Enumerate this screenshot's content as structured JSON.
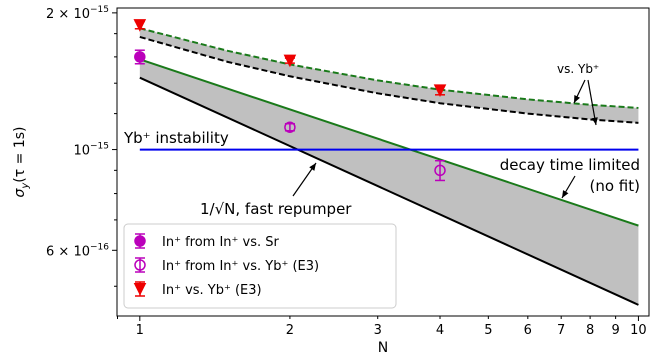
{
  "chart_data": {
    "type": "scatter",
    "xlabel": "N",
    "ylabel": "σ",
    "ylabel_sub": "y",
    "ylabel_arg": "(τ = 1s)",
    "xscale": "log",
    "yscale": "log",
    "xlim": [
      0.9,
      10.5
    ],
    "ylim": [
      4.3e-16,
      2.05e-15
    ],
    "xticks": [
      1,
      2,
      3,
      4,
      5,
      6,
      7,
      8,
      9,
      10
    ],
    "xtick_labels": [
      "1",
      "2",
      "3",
      "4",
      "5",
      "6",
      "7",
      "8",
      "9",
      "10"
    ],
    "yticks": [
      {
        "value": 2e-15,
        "mant": "2 × 10",
        "exp": "−15"
      },
      {
        "value": 1e-15,
        "mant": "10",
        "exp": "−15"
      },
      {
        "value": 6e-16,
        "mant": "6 × 10",
        "exp": "−16"
      }
    ],
    "bands": [
      {
        "name": "decay time limited",
        "upper": {
          "x": [
            1,
            10
          ],
          "y": [
            1.58e-15,
            6.8e-16
          ]
        },
        "lower": {
          "x": [
            1,
            10
          ],
          "y": [
            1.44e-15,
            4.55e-16
          ]
        }
      },
      {
        "name": "vs. Yb+",
        "upper": {
          "x": [
            1,
            1.5,
            2,
            3,
            4,
            6,
            8,
            10
          ],
          "y": [
            1.85e-15,
            1.65e-15,
            1.54e-15,
            1.42e-15,
            1.355e-15,
            1.29e-15,
            1.255e-15,
            1.235e-15
          ]
        },
        "lower": {
          "x": [
            1,
            1.5,
            2,
            3,
            4,
            6,
            8,
            10
          ],
          "y": [
            1.77e-15,
            1.56e-15,
            1.45e-15,
            1.33e-15,
            1.265e-15,
            1.2e-15,
            1.165e-15,
            1.145e-15
          ]
        }
      }
    ],
    "hline": {
      "y": 1e-15,
      "label": "Yb⁺ instability",
      "color": "#0000ee"
    },
    "series": [
      {
        "name": "In⁺ from In⁺ vs. Sr",
        "marker": "filled-circle",
        "color": "#bb00bb",
        "x": [
          1
        ],
        "y": [
          1.6e-15
        ],
        "err": [
          5.5e-17
        ]
      },
      {
        "name": "In⁺ from In⁺ vs. Yb⁺ (E3)",
        "marker": "open-circle",
        "color": "#bb00bb",
        "x": [
          2,
          4
        ],
        "y": [
          1.12e-15,
          9e-16
        ],
        "err": [
          2e-17,
          4.5e-17
        ]
      },
      {
        "name": "In⁺ vs. Yb⁺ (E3)",
        "marker": "down-triangle",
        "color": "#ee0000",
        "x": [
          1,
          2,
          4
        ],
        "y": [
          1.88e-15,
          1.57e-15,
          1.35e-15
        ],
        "err": [
          3.5e-17,
          2e-17,
          3e-17
        ]
      }
    ],
    "annotations": [
      {
        "text": "vs. Yb⁺"
      },
      {
        "text": "decay time limited"
      },
      {
        "text": "(no fit)"
      },
      {
        "text": "1/√N, fast repumper"
      }
    ],
    "legend_position": "lower-left",
    "grid": false,
    "colors": {
      "band_fill": "#c0c0c0",
      "green": "#1a7a1a",
      "black": "#000000"
    }
  }
}
